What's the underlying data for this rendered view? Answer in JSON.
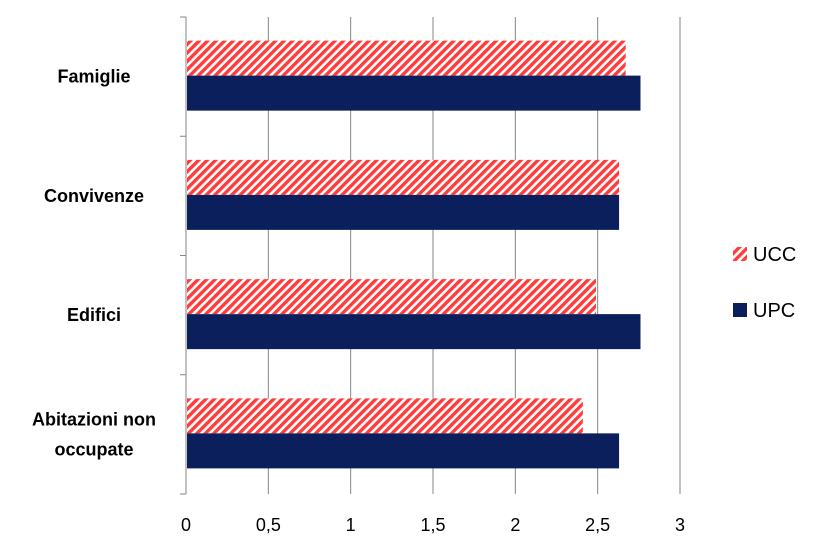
{
  "chart_data": {
    "type": "bar",
    "orientation": "horizontal",
    "categories": [
      "Famiglie",
      "Convivenze",
      "Edifici",
      "Abitazioni non occupate"
    ],
    "series": [
      {
        "name": "UCC",
        "values": [
          2.67,
          2.63,
          2.49,
          2.41
        ],
        "color": "#ff3b3b",
        "pattern": "diagonal-stripes"
      },
      {
        "name": "UPC",
        "values": [
          2.76,
          2.63,
          2.76,
          2.63
        ],
        "color": "#0a1f5c"
      }
    ],
    "xlim": [
      0,
      3
    ],
    "x_ticks": [
      "0",
      "0,5",
      "1",
      "1,5",
      "2",
      "2,5",
      "3"
    ],
    "grid": true,
    "legend": "right",
    "title": "",
    "xlabel": "",
    "ylabel": ""
  }
}
